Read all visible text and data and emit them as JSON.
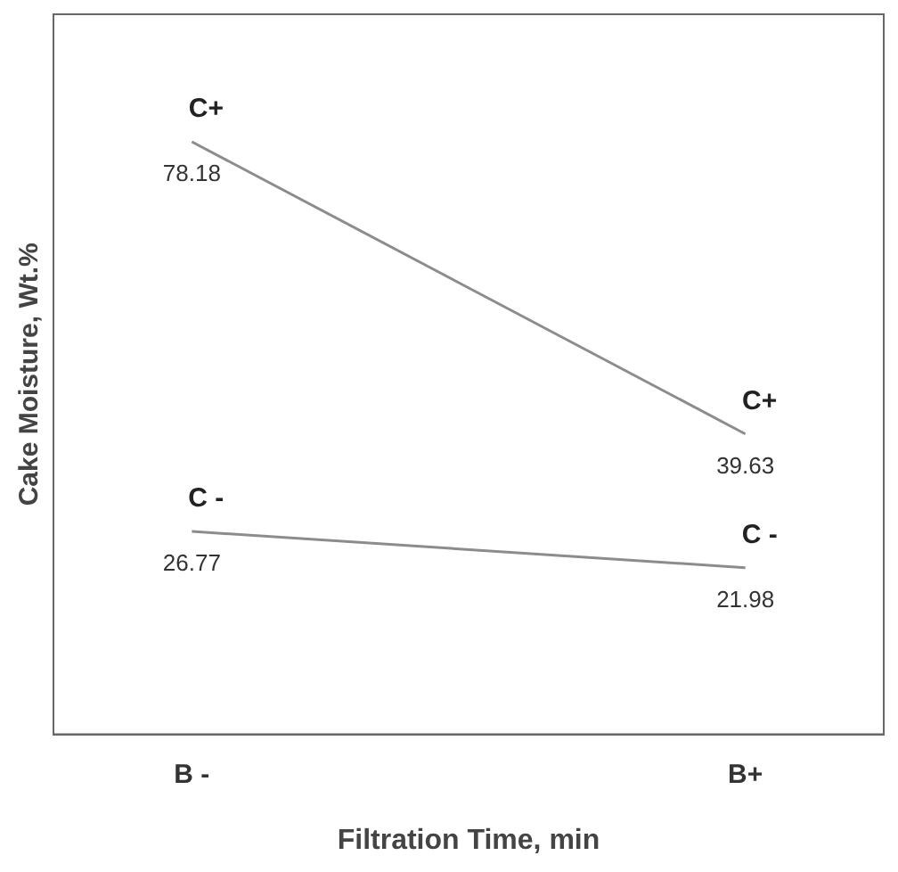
{
  "chart_data": {
    "type": "line",
    "xlabel": "Filtration Time, min",
    "ylabel": "Cake Moisture, Wt.%",
    "categories": [
      "B -",
      "B+"
    ],
    "series": [
      {
        "name": "C+",
        "color": "#8c8c8c",
        "values": [
          78.18,
          39.63
        ]
      },
      {
        "name": "C -",
        "color": "#8c8c8c",
        "values": [
          26.77,
          21.98
        ]
      }
    ],
    "ylim": [
      0,
      95
    ],
    "tick_labels": "x",
    "grid": false,
    "legend": false,
    "marker": "none",
    "line_style": "solid",
    "data_labels": true
  }
}
